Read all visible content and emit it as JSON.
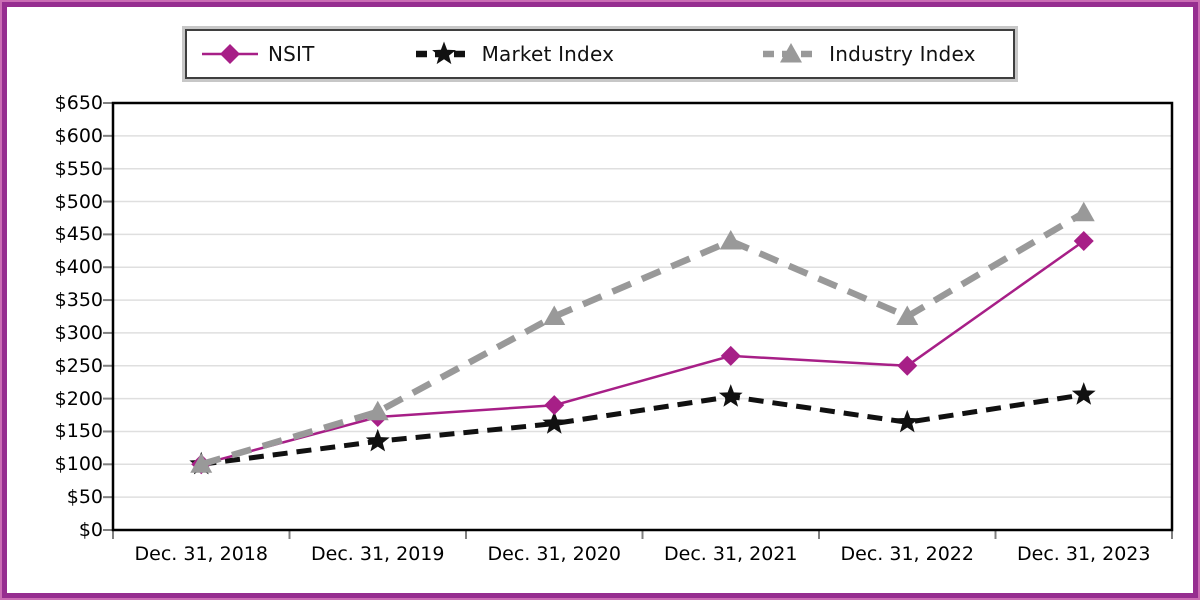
{
  "frame": {
    "outer_border_color": "#CA6DB4",
    "inner_border_color": "#962D90"
  },
  "axis": {
    "line_color": "#000000",
    "grid_color": "#DFDFDF",
    "tick_color": "#808080"
  },
  "chart_data": {
    "type": "line",
    "title": "",
    "xlabel": "",
    "ylabel": "",
    "x": [
      "Dec. 31, 2018",
      "Dec. 31, 2019",
      "Dec. 31, 2020",
      "Dec. 31, 2021",
      "Dec. 31, 2022",
      "Dec. 31, 2023"
    ],
    "series": [
      {
        "name": "NSIT",
        "color": "#A71F87",
        "marker": "diamond",
        "line_style": "solid",
        "line_width": 2.5,
        "values": [
          100,
          172,
          190,
          265,
          250,
          440
        ]
      },
      {
        "name": "Market Index",
        "color": "#111111",
        "marker": "star",
        "line_style": "dashed",
        "line_width": 5,
        "values": [
          100,
          135,
          162,
          203,
          164,
          206
        ]
      },
      {
        "name": "Industry Index",
        "color": "#999999",
        "marker": "triangle",
        "line_style": "dashed",
        "line_width": 6.5,
        "values": [
          100,
          180,
          325,
          440,
          325,
          483
        ]
      }
    ],
    "ylim": [
      0,
      650
    ],
    "y_tick_step": 50,
    "y_ticks": [
      "$0",
      "$50",
      "$100",
      "$150",
      "$200",
      "$250",
      "$300",
      "$350",
      "$400",
      "$450",
      "$500",
      "$550",
      "$600",
      "$650"
    ],
    "grid": true,
    "legend_position": "top"
  }
}
